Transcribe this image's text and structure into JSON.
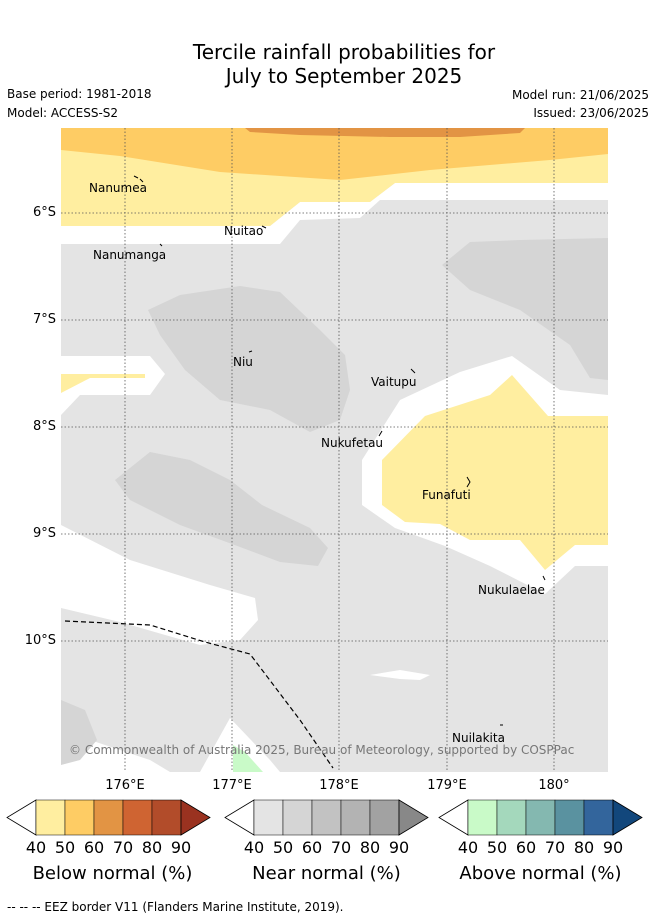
{
  "title_line1": "Tercile rainfall probabilities for",
  "title_line2": "July to September 2025",
  "base_period": "Base period: 1981-2018",
  "model": "Model: ACCESS-S2",
  "model_run": "Model run: 21/06/2025",
  "issued": "Issued: 23/06/2025",
  "lat_ticks": [
    "6°S",
    "7°S",
    "8°S",
    "9°S",
    "10°S"
  ],
  "lon_ticks": [
    "176°E",
    "177°E",
    "178°E",
    "179°E",
    "180°"
  ],
  "places": {
    "nanumea": "Nanumea",
    "nuitao": "Nuitao",
    "nanumanga": "Nanumanga",
    "niu": "Niu",
    "vaitupu": "Vaitupu",
    "nukufetau": "Nukufetau",
    "funafuti": "Funafuti",
    "nukulaelae": "Nukulaelae",
    "nuilakita": "Nuilakita"
  },
  "copyright": "© Commonwealth of Australia 2025, Bureau of Meteorology, supported by COSPPac",
  "colorbars": [
    {
      "title": "Below normal (%)",
      "labels": [
        "40",
        "50",
        "60",
        "70",
        "80",
        "90"
      ],
      "colors": [
        "#ffeea0",
        "#fecc64",
        "#e29444",
        "#cf6432",
        "#b24c2a",
        "#9a3220"
      ]
    },
    {
      "title": "Near normal (%)",
      "labels": [
        "40",
        "50",
        "60",
        "70",
        "80",
        "90"
      ],
      "colors": [
        "#e4e4e4",
        "#d5d5d5",
        "#c2c2c2",
        "#b3b3b3",
        "#a2a2a2",
        "#888888"
      ]
    },
    {
      "title": "Above normal (%)",
      "labels": [
        "40",
        "50",
        "60",
        "70",
        "80",
        "90"
      ],
      "colors": [
        "#c9fac8",
        "#a4d8bc",
        "#84b8b0",
        "#5a92a0",
        "#33659c",
        "#12477c"
      ]
    }
  ],
  "eez_note": "-- -- -- EEZ border V11 (Flanders Marine Institute, 2019)."
}
